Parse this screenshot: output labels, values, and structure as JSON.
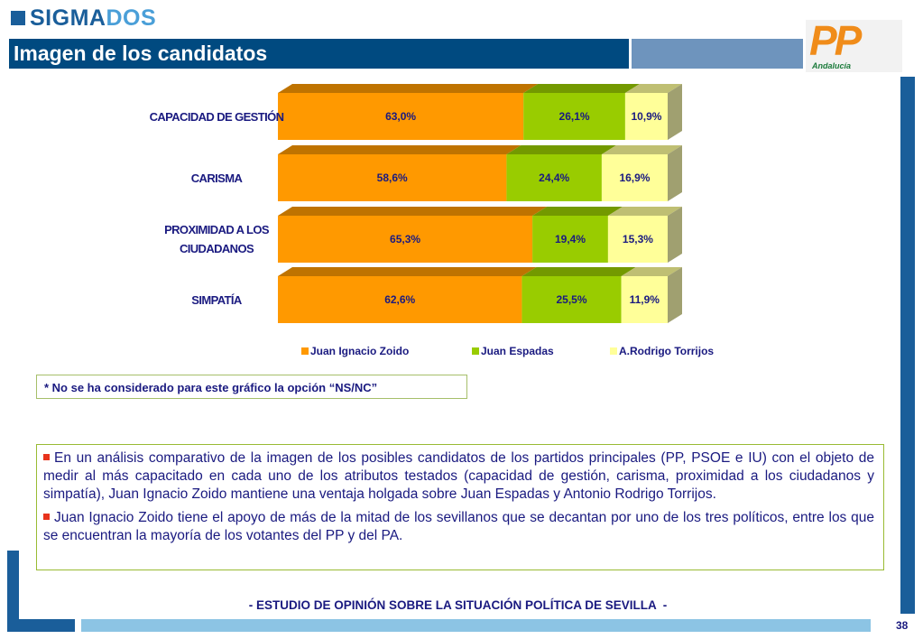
{
  "header": {
    "logo_parts": [
      "SIGMA",
      "DOS"
    ],
    "title": "Imagen de los candidatos",
    "party_logo": "PP",
    "party_region": "Andalucía"
  },
  "chart_data": {
    "type": "stacked-bar-horizontal",
    "categories": [
      "CAPACIDAD DE GESTIÓN",
      "CARISMA",
      "PROXIMIDAD A LOS CIUDADANOS",
      "SIMPATÍA"
    ],
    "series": [
      {
        "name": "Juan Ignacio Zoido",
        "color": "#ff9900",
        "values": [
          63.0,
          58.6,
          65.3,
          62.6
        ],
        "value_labels": [
          "63,0%",
          "58,6%",
          "65,3%",
          "62,6%"
        ]
      },
      {
        "name": "Juan Espadas",
        "color": "#99cc00",
        "values": [
          26.1,
          24.4,
          19.4,
          25.5
        ],
        "value_labels": [
          "26,1%",
          "24,4%",
          "19,4%",
          "25,5%"
        ]
      },
      {
        "name": "A.Rodrigo Torrijos",
        "color": "#ffff99",
        "values": [
          10.9,
          16.9,
          15.3,
          11.9
        ],
        "value_labels": [
          "10,9%",
          "16,9%",
          "15,3%",
          "11,9%"
        ]
      }
    ]
  },
  "note": "* No se ha considerado para este gráfico la opción “NS/NC”",
  "paragraphs": [
    "En un análisis comparativo de la imagen de los posibles candidatos de los partidos principales (PP, PSOE e IU) con el objeto de medir al más capacitado en cada uno de los atributos testados (capacidad de gestión, carisma, proximidad a los ciudadanos y simpatía), Juan Ignacio Zoido mantiene una ventaja holgada sobre Juan Espadas y Antonio Rodrigo Torrijos.",
    "Juan Ignacio Zoido tiene el apoyo de más de la mitad de los sevillanos que se decantan por uno de los tres políticos, entre los que se encuentran la mayoría de los votantes del PP y del PA."
  ],
  "footer": "- ESTUDIO DE OPINIÓN SOBRE LA SITUACIÓN POLÍTICA DE SEVILLA  -",
  "page_number": "38"
}
